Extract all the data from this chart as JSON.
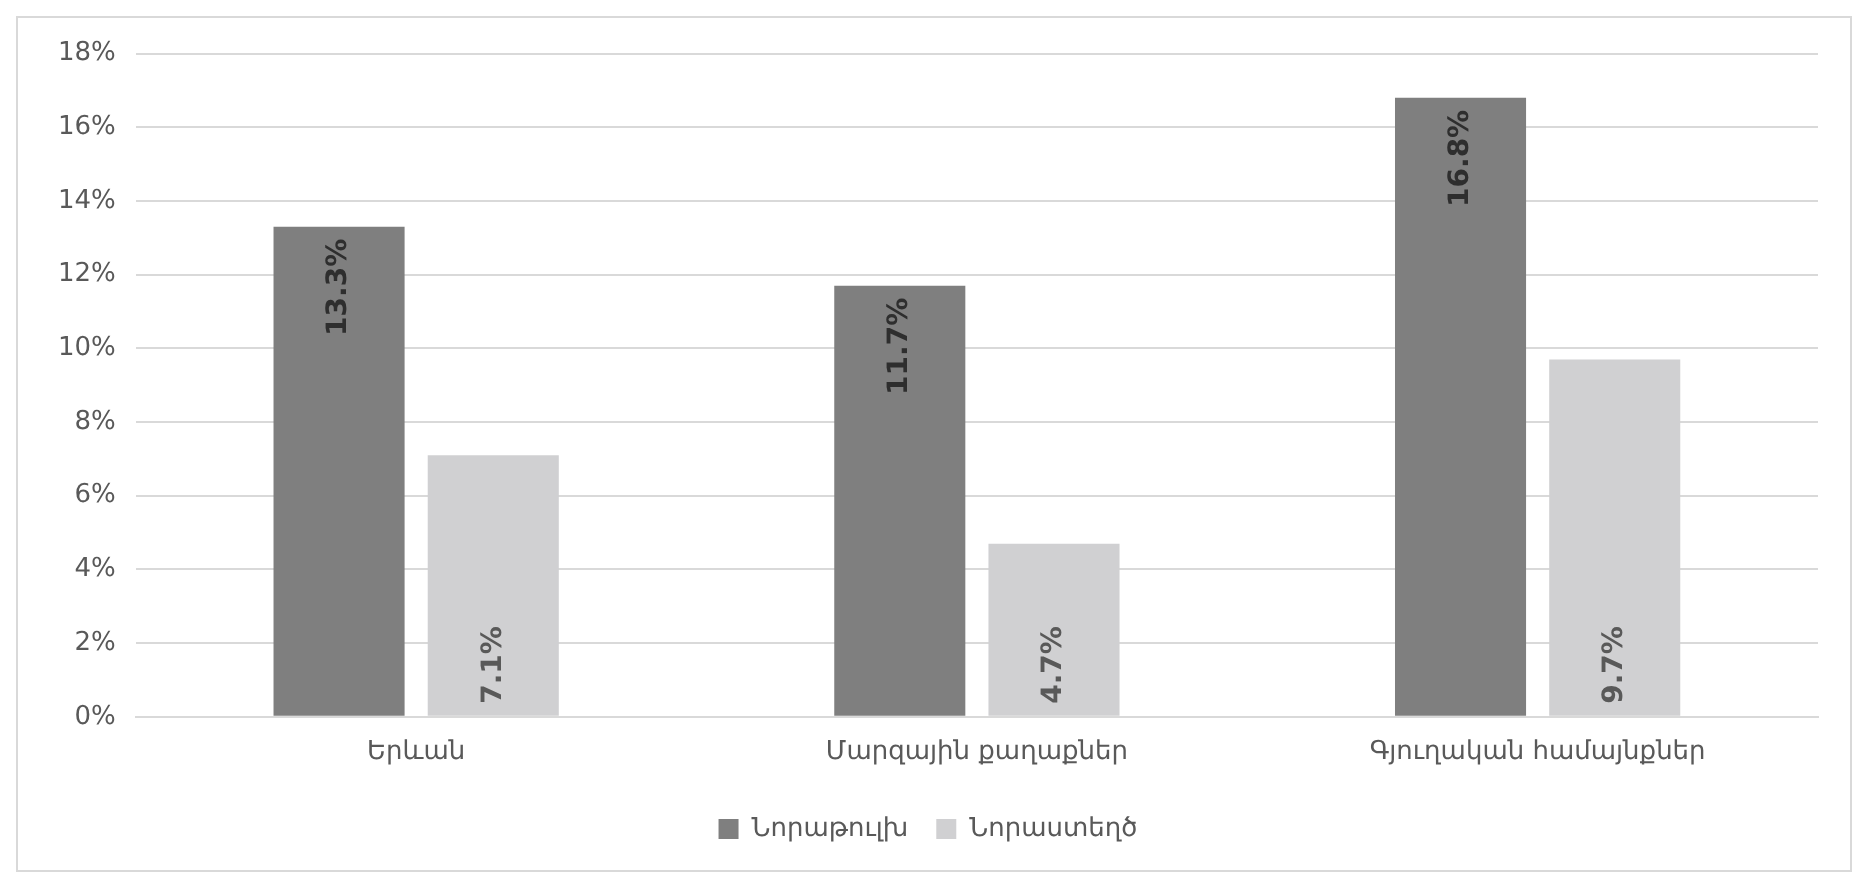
{
  "chart_data": {
    "type": "bar",
    "categories": [
      "Երևան",
      "Մարզային քաղաքներ",
      "Գյուղական համայնքներ"
    ],
    "series": [
      {
        "name": "Նորաթուլխ",
        "color": "#7f7f7f",
        "values": [
          13.3,
          11.7,
          16.8
        ],
        "value_labels": [
          "13.3%",
          "11.7%",
          "16.8%"
        ]
      },
      {
        "name": "Նորաստեղծ",
        "color": "#d0d0d2",
        "values": [
          7.1,
          4.7,
          9.7
        ],
        "value_labels": [
          "7.1%",
          "4.7%",
          "9.7%"
        ]
      }
    ],
    "ylim": [
      0,
      18
    ],
    "yticks": [
      {
        "value": 0,
        "label": "0%"
      },
      {
        "value": 2,
        "label": "2%"
      },
      {
        "value": 4,
        "label": "4%"
      },
      {
        "value": 6,
        "label": "6%"
      },
      {
        "value": 8,
        "label": "8%"
      },
      {
        "value": 10,
        "label": "10%"
      },
      {
        "value": 12,
        "label": "12%"
      },
      {
        "value": 14,
        "label": "14%"
      },
      {
        "value": 16,
        "label": "16%"
      },
      {
        "value": 18,
        "label": "18%"
      }
    ],
    "grid": "y",
    "legend": "bottom"
  }
}
